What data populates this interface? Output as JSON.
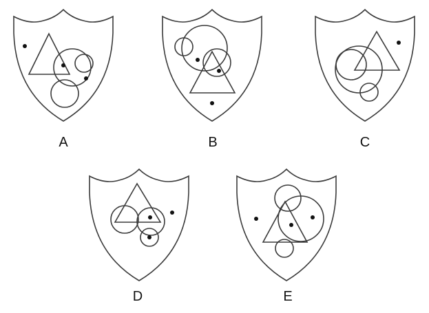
{
  "options": [
    {
      "label": "A"
    },
    {
      "label": "B"
    },
    {
      "label": "C"
    },
    {
      "label": "D"
    },
    {
      "label": "E"
    }
  ],
  "colors": {
    "stroke": "#3a3a3a",
    "dot": "#111111",
    "text": "#111111",
    "background": "#ffffff"
  }
}
